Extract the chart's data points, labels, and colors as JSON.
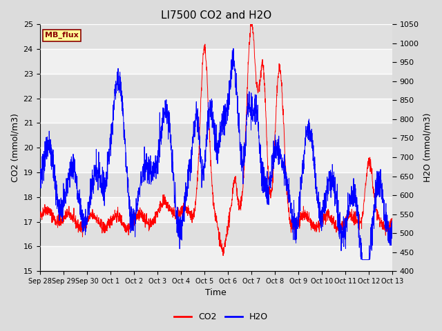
{
  "title": "LI7500 CO2 and H2O",
  "xlabel": "Time",
  "ylabel_left": "CO2 (mmol/m3)",
  "ylabel_right": "H2O (mmol/m3)",
  "ylim_left": [
    15.0,
    25.0
  ],
  "ylim_right": [
    400,
    1050
  ],
  "yticks_left": [
    15.0,
    16.0,
    17.0,
    18.0,
    19.0,
    20.0,
    21.0,
    22.0,
    23.0,
    24.0,
    25.0
  ],
  "yticks_right": [
    400,
    450,
    500,
    550,
    600,
    650,
    700,
    750,
    800,
    850,
    900,
    950,
    1000,
    1050
  ],
  "xtick_labels": [
    "Sep 28",
    "Sep 29",
    "Sep 30",
    "Oct 1",
    "Oct 2",
    "Oct 3",
    "Oct 4",
    "Oct 5",
    "Oct 6",
    "Oct 7",
    "Oct 8",
    "Oct 9",
    "Oct 10",
    "Oct 11",
    "Oct 12",
    "Oct 13"
  ],
  "color_co2": "#FF0000",
  "color_h2o": "#0000FF",
  "color_bg_outer": "#DCDCDC",
  "color_bg_plot": "#FFFFFF",
  "color_band_light": "#F0F0F0",
  "color_band_dark": "#E0E0E0",
  "watermark_text": "MB_flux",
  "watermark_color": "#8B0000",
  "watermark_bg": "#FFFF99",
  "watermark_border": "#8B0000",
  "legend_fontsize": 9,
  "title_fontsize": 11,
  "axis_label_fontsize": 9,
  "tick_fontsize": 8
}
